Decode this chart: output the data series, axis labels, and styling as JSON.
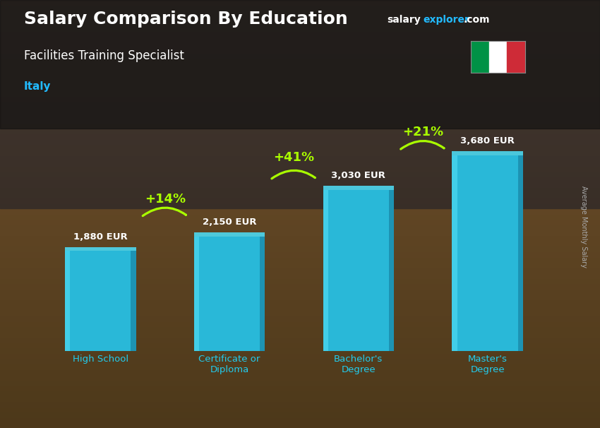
{
  "title": "Salary Comparison By Education",
  "subtitle": "Facilities Training Specialist",
  "country": "Italy",
  "ylabel": "Average Monthly Salary",
  "categories": [
    "High School",
    "Certificate or\nDiploma",
    "Bachelor's\nDegree",
    "Master's\nDegree"
  ],
  "values": [
    1880,
    2150,
    3030,
    3680
  ],
  "value_labels": [
    "1,880 EUR",
    "2,150 EUR",
    "3,030 EUR",
    "3,680 EUR"
  ],
  "pct_labels": [
    "+14%",
    "+41%",
    "+21%"
  ],
  "bar_color_main": "#29b8d8",
  "bar_color_light": "#4dd8f0",
  "bar_color_dark": "#1a8aaa",
  "bar_color_side": "#1a9ab8",
  "bg_color": "#5a4535",
  "title_color": "#ffffff",
  "subtitle_color": "#ffffff",
  "country_color": "#22bbff",
  "value_label_color": "#ffffff",
  "pct_color": "#aaff00",
  "cat_label_color": "#22ccee",
  "site_salary_color": "#ffffff",
  "site_explorer_color": "#22bbff",
  "site_com_color": "#ffffff",
  "flag_green": "#009246",
  "flag_white": "#ffffff",
  "flag_red": "#ce2b37",
  "arrow_color": "#aaff00",
  "ylabel_color": "#aaaaaa",
  "overlay_alpha": 0.55
}
